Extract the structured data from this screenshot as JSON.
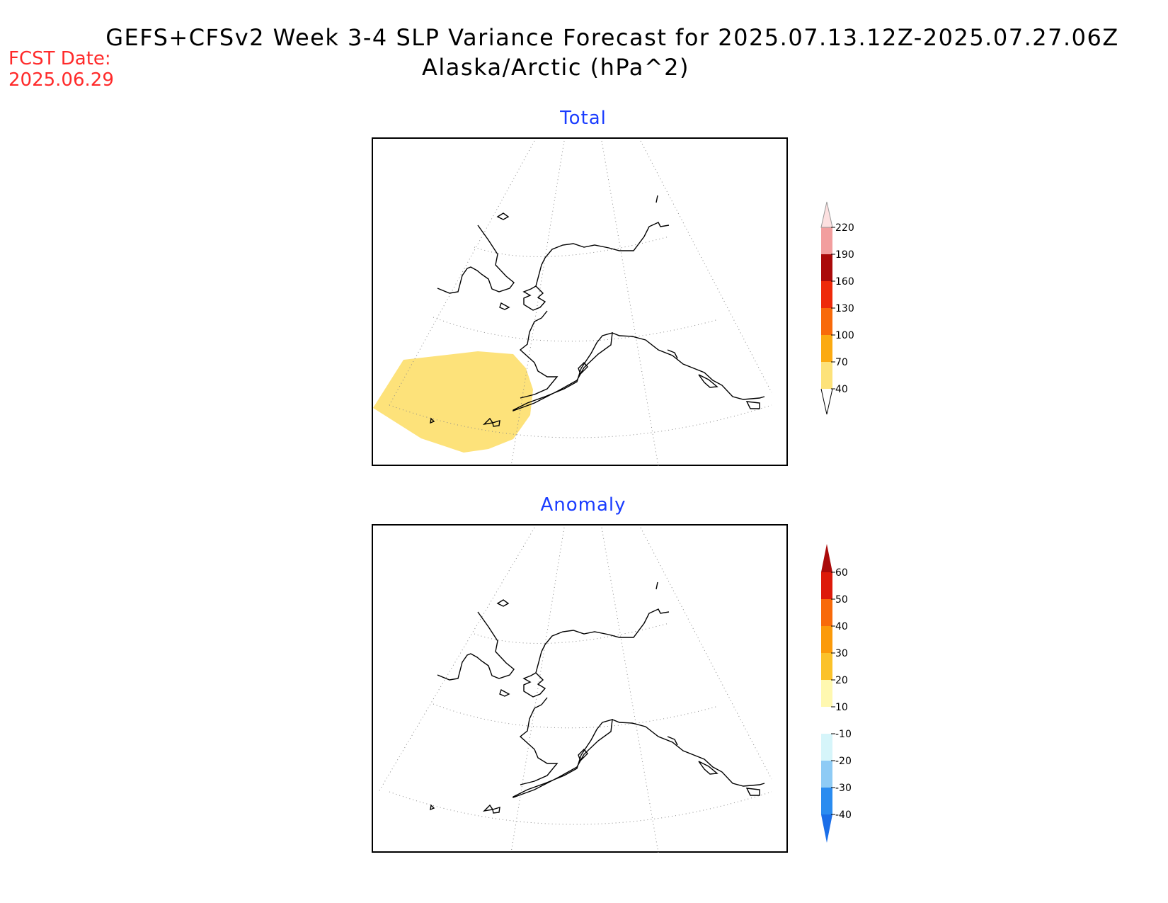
{
  "header": {
    "title_line1": "GEFS+CFSv2 Week 3-4 SLP Variance Forecast for 2025.07.13.12Z-2025.07.27.06Z",
    "title_line2": "Alaska/Arctic (hPa^2)",
    "fcst_label": "FCST Date:",
    "fcst_value": "2025.06.29"
  },
  "panels": {
    "total": {
      "title": "Total",
      "colorbar": {
        "levels": [
          "40",
          "70",
          "100",
          "130",
          "160",
          "190",
          "220"
        ],
        "colors": [
          "#fde27a",
          "#fbaa12",
          "#f86a0a",
          "#ee2a0a",
          "#aa0a0a",
          "#f29e9e",
          "#fde0e0"
        ]
      },
      "shaded_regions": [
        {
          "description_level": "40-70",
          "color": "#fde27a"
        }
      ]
    },
    "anomaly": {
      "title": "Anomaly",
      "colorbar": {
        "levels": [
          "-40",
          "-30",
          "-20",
          "-10",
          "10",
          "20",
          "30",
          "40",
          "50",
          "60"
        ],
        "colors": [
          "#1a6ee8",
          "#2a8cf0",
          "#8ecbf5",
          "#d6f5fa",
          "#ffffff",
          "#fff8b0",
          "#fbc22a",
          "#fb9a0a",
          "#f86a0a",
          "#dd1a0a",
          "#aa0a0a"
        ]
      }
    }
  }
}
